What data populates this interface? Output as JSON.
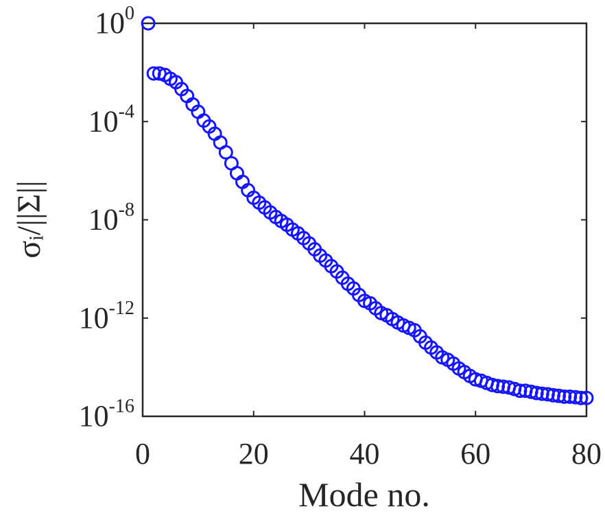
{
  "chart_data": {
    "type": "scatter",
    "x_label": "Mode no.",
    "y_label": "σᵢ/||Σ||",
    "log_y": true,
    "xlim": [
      0,
      80
    ],
    "xticks": [
      0,
      20,
      40,
      60,
      80
    ],
    "ylim": [
      1e-16,
      1
    ],
    "yticks": [
      {
        "value": 1,
        "label": "10^0"
      },
      {
        "value": 0.0001,
        "label": "10^-4"
      },
      {
        "value": 1e-08,
        "label": "10^-8"
      },
      {
        "value": 1e-12,
        "label": "10^-12"
      },
      {
        "value": 1e-16,
        "label": "10^-16"
      }
    ],
    "x": [
      1,
      2,
      3,
      4,
      5,
      6,
      7,
      8,
      9,
      10,
      11,
      12,
      13,
      14,
      15,
      16,
      17,
      18,
      19,
      20,
      21,
      22,
      23,
      24,
      25,
      26,
      27,
      28,
      29,
      30,
      31,
      32,
      33,
      34,
      35,
      36,
      37,
      38,
      39,
      40,
      41,
      42,
      43,
      44,
      45,
      46,
      47,
      48,
      49,
      50,
      51,
      52,
      53,
      54,
      55,
      56,
      57,
      58,
      59,
      60,
      61,
      62,
      63,
      64,
      65,
      66,
      67,
      68,
      69,
      70,
      71,
      72,
      73,
      74,
      75,
      76,
      77,
      78,
      79,
      80
    ],
    "series": [
      {
        "color": "#1414ff",
        "values": [
          1,
          0.0091,
          0.0091,
          0.0079,
          0.0055,
          0.004,
          0.0021,
          0.0011,
          0.0005,
          0.00025,
          0.00011,
          6.3e-05,
          3.2e-05,
          1.4e-05,
          5.6e-06,
          2e-06,
          7.9e-07,
          3.5e-07,
          1.6e-07,
          7.9e-08,
          5e-08,
          3.2e-08,
          2e-08,
          1.3e-08,
          8.9e-09,
          6.3e-09,
          4e-09,
          2.8e-09,
          1.8e-09,
          1.1e-09,
          6.3e-10,
          3.5e-10,
          2.2e-10,
          1.3e-10,
          7.9e-11,
          4.4e-11,
          2.5e-11,
          1.6e-11,
          8.7e-12,
          5e-12,
          4e-12,
          2.5e-12,
          1.6e-12,
          1.3e-12,
          9.1e-13,
          6.6e-13,
          5e-13,
          4e-13,
          3.2e-13,
          1.8e-13,
          1e-13,
          6.3e-14,
          4e-14,
          2.5e-14,
          2e-14,
          1.4e-14,
          8.9e-15,
          6.3e-15,
          4.4e-15,
          3.2e-15,
          2.8e-15,
          2.3e-15,
          1.9e-15,
          1.7e-15,
          1.6e-15,
          1.5e-15,
          1.3e-15,
          1.1e-15,
          1.1e-15,
          1e-15,
          8.9e-16,
          8.3e-16,
          7.9e-16,
          7.2e-16,
          6.8e-16,
          6.3e-16,
          6.3e-16,
          6e-16,
          5.6e-16,
          5.6e-16
        ]
      }
    ]
  }
}
